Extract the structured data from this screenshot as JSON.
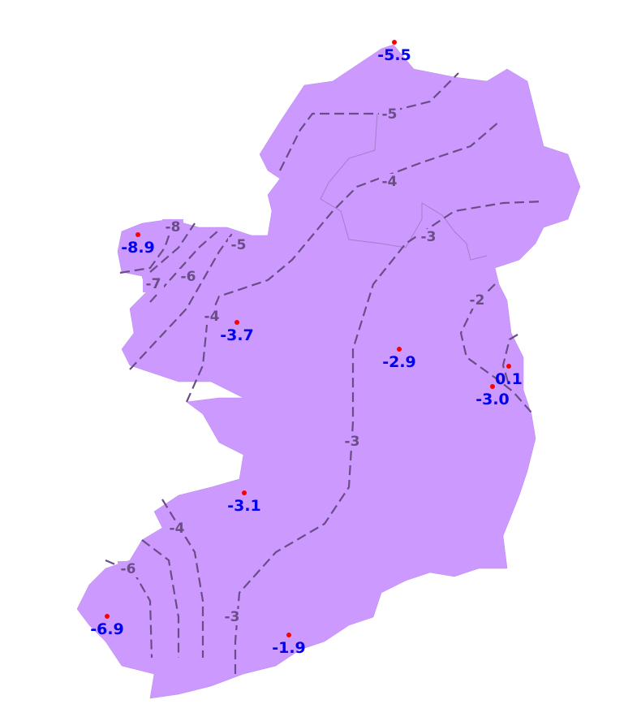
{
  "map": {
    "land_color": "#cc99ff",
    "contour_color": "#6a4d86",
    "station_color": "#ff0000",
    "station_label_color": "#0000ee",
    "contour_labels": [
      "-5",
      "-4",
      "-3",
      "-2",
      "-3",
      "-3",
      "-4",
      "-6",
      "-8",
      "-5",
      "-6",
      "-7",
      "-4"
    ],
    "stations": [
      {
        "value": "-5.5"
      },
      {
        "value": "-8.9"
      },
      {
        "value": "-3.7"
      },
      {
        "value": "-2.9"
      },
      {
        "value": "0.1"
      },
      {
        "value": "-3.0"
      },
      {
        "value": "-3.1"
      },
      {
        "value": "-6.9"
      },
      {
        "value": "-1.9"
      }
    ]
  }
}
